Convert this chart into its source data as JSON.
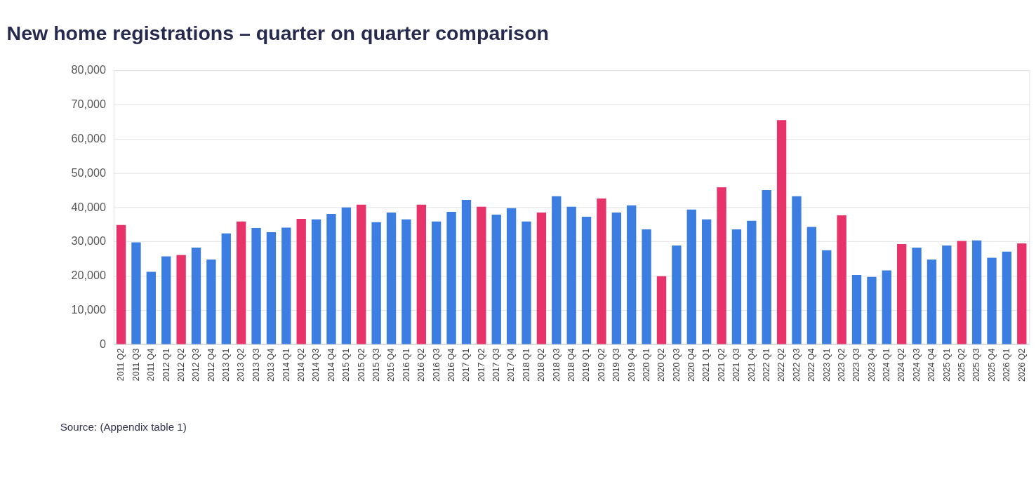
{
  "chart_data": {
    "type": "bar",
    "title": "New home registrations – quarter on quarter comparison",
    "categories": [
      "2011 Q2",
      "2011 Q3",
      "2011 Q4",
      "2012 Q1",
      "2012 Q2",
      "2012 Q3",
      "2012 Q4",
      "2013 Q1",
      "2013 Q2",
      "2013 Q3",
      "2013 Q4",
      "2014 Q1",
      "2014 Q2",
      "2014 Q3",
      "2014 Q4",
      "2015 Q1",
      "2015 Q2",
      "2015 Q3",
      "2015 Q4",
      "2016 Q1",
      "2016 Q2",
      "2016 Q3",
      "2016 Q4",
      "2017 Q1",
      "2017 Q2",
      "2017 Q3",
      "2017 Q4",
      "2018 Q1",
      "2018 Q2",
      "2018 Q3",
      "2018 Q4",
      "2019 Q1",
      "2019 Q2",
      "2019 Q3",
      "2019 Q4",
      "2020 Q1",
      "2020 Q2",
      "2020 Q3",
      "2020 Q4",
      "2021 Q1",
      "2021 Q2",
      "2021 Q3",
      "2021 Q4",
      "2022 Q1",
      "2022 Q2",
      "2022 Q3",
      "2022 Q4",
      "2023 Q1",
      "2023 Q2",
      "2023 Q3",
      "2023 Q4",
      "2024 Q1",
      "2024 Q2",
      "2024 Q3",
      "2024 Q4",
      "2025 Q1",
      "2025 Q2",
      "2025 Q3",
      "2025 Q4",
      "2026 Q1",
      "2026 Q2"
    ],
    "values": [
      34800,
      29700,
      21100,
      25600,
      26000,
      28200,
      24700,
      32300,
      35800,
      33900,
      32700,
      34000,
      36600,
      36400,
      38000,
      39900,
      40700,
      35600,
      38400,
      36400,
      40700,
      35800,
      38600,
      42100,
      40100,
      37800,
      39700,
      35800,
      38400,
      43200,
      40100,
      37200,
      42500,
      38400,
      40500,
      33500,
      19800,
      28800,
      39300,
      36400,
      45800,
      33500,
      36000,
      45000,
      65400,
      43200,
      34200,
      27400,
      37600,
      20200,
      19600,
      21500,
      29200,
      28200,
      24700,
      28800,
      30100,
      30300,
      25200,
      27000,
      29400
    ],
    "colors": [
      "#e8336a",
      "#3b7de0",
      "#3b7de0",
      "#3b7de0",
      "#e8336a",
      "#3b7de0",
      "#3b7de0",
      "#3b7de0",
      "#e8336a",
      "#3b7de0",
      "#3b7de0",
      "#3b7de0",
      "#e8336a",
      "#3b7de0",
      "#3b7de0",
      "#3b7de0",
      "#e8336a",
      "#3b7de0",
      "#3b7de0",
      "#3b7de0",
      "#e8336a",
      "#3b7de0",
      "#3b7de0",
      "#3b7de0",
      "#e8336a",
      "#3b7de0",
      "#3b7de0",
      "#3b7de0",
      "#e8336a",
      "#3b7de0",
      "#3b7de0",
      "#3b7de0",
      "#e8336a",
      "#3b7de0",
      "#3b7de0",
      "#3b7de0",
      "#e8336a",
      "#3b7de0",
      "#3b7de0",
      "#3b7de0",
      "#e8336a",
      "#3b7de0",
      "#3b7de0",
      "#3b7de0",
      "#e8336a",
      "#3b7de0",
      "#3b7de0",
      "#3b7de0",
      "#e8336a",
      "#3b7de0",
      "#3b7de0",
      "#3b7de0",
      "#e8336a",
      "#3b7de0",
      "#3b7de0",
      "#3b7de0",
      "#e8336a",
      "#3b7de0",
      "#3b7de0",
      "#3b7de0",
      "#e8336a"
    ],
    "ylim": [
      0,
      80000
    ],
    "yticks": [
      {
        "value": 0,
        "label": "0"
      },
      {
        "value": 10000,
        "label": "10,000"
      },
      {
        "value": 20000,
        "label": "20,000"
      },
      {
        "value": 30000,
        "label": "30,000"
      },
      {
        "value": 40000,
        "label": "40,000"
      },
      {
        "value": 50000,
        "label": "50,000"
      },
      {
        "value": 60000,
        "label": "60,000"
      },
      {
        "value": 70000,
        "label": "70,000"
      },
      {
        "value": 80000,
        "label": "80,000"
      }
    ],
    "grid": "y",
    "annotations": [
      "Source: (Appendix table 1)"
    ]
  }
}
